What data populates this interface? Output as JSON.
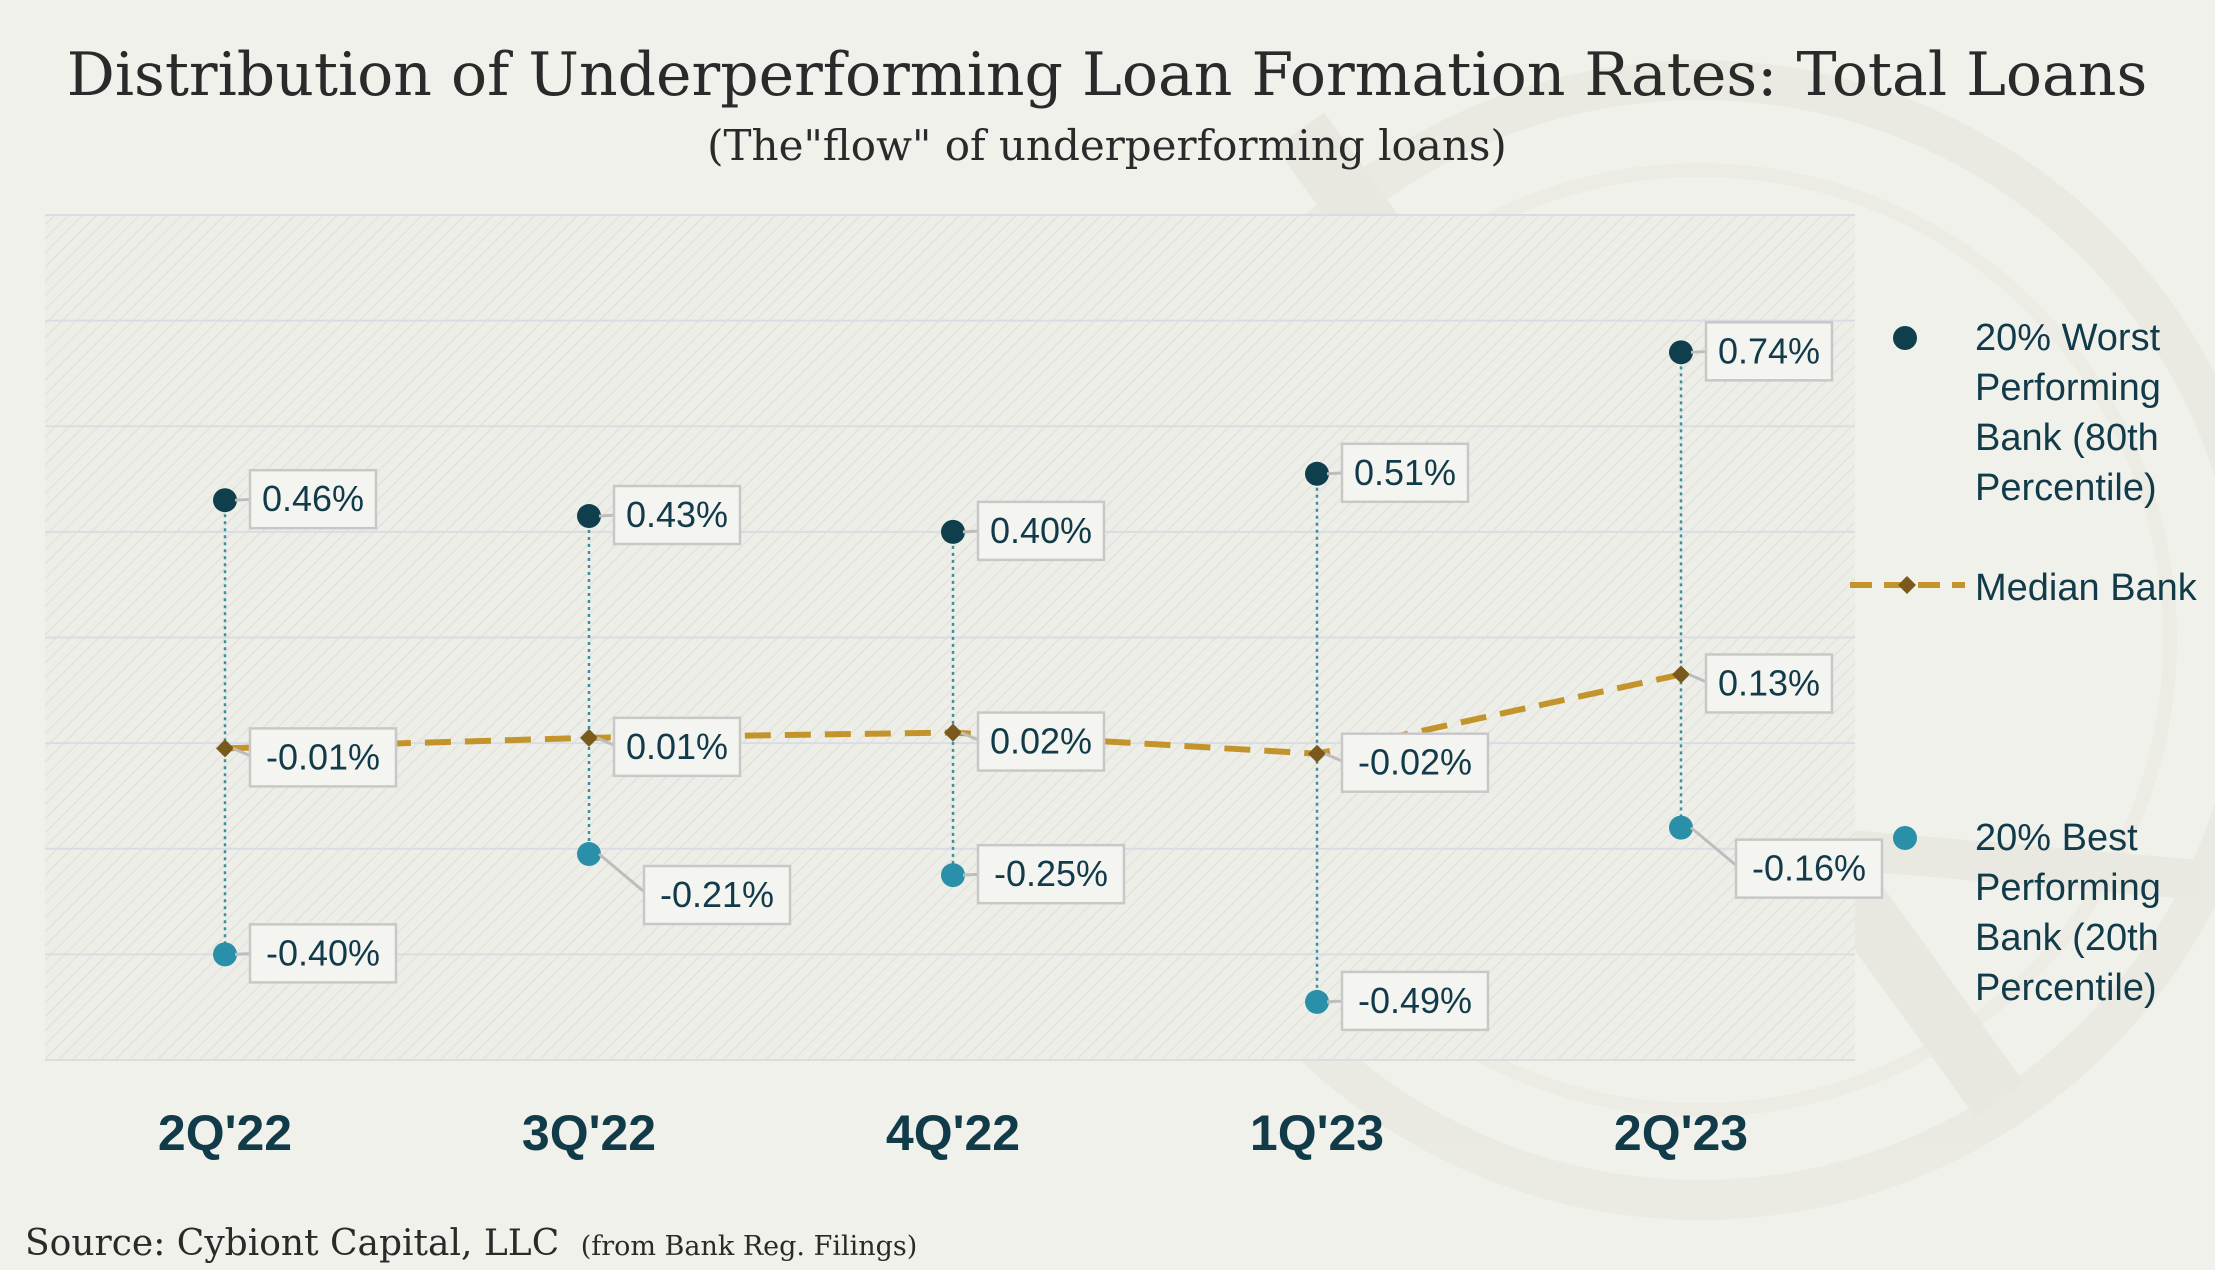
{
  "title": "Distribution of Underperforming Loan Formation Rates: Total Loans",
  "subtitle": "(The\"flow\" of underperforming loans)",
  "source": {
    "main": "Source: Cybiont Capital, LLC",
    "note": "(from Bank Reg. Filings)"
  },
  "colors": {
    "worst": "#0f3f4d",
    "median": "#c4942c",
    "median_marker": "#7a5a1c",
    "best": "#2a8fa8",
    "connector": "#3a8fa0",
    "gridline": "#d9dde3",
    "background": "#f1f1ec",
    "label_border": "#c8c8c8",
    "label_fill": "#f4f4f1"
  },
  "chart_data": {
    "type": "line",
    "categories": [
      "2Q'22",
      "3Q'22",
      "4Q'22",
      "1Q'23",
      "2Q'23"
    ],
    "series": [
      {
        "name": "20% Worst Performing Bank (80th Percentile)",
        "values": [
          0.46,
          0.43,
          0.4,
          0.51,
          0.74
        ],
        "labels": [
          "0.46%",
          "0.43%",
          "0.40%",
          "0.51%",
          "0.74%"
        ],
        "style": "markers"
      },
      {
        "name": "Median Bank",
        "values": [
          -0.01,
          0.01,
          0.02,
          -0.02,
          0.13
        ],
        "labels": [
          "-0.01%",
          "0.01%",
          "0.02%",
          "-0.02%",
          "0.13%"
        ],
        "style": "dashed-line-diamond"
      },
      {
        "name": "20% Best Performing Bank (20th Percentile)",
        "values": [
          -0.4,
          -0.21,
          -0.25,
          -0.49,
          -0.16
        ],
        "labels": [
          "-0.40%",
          "-0.21%",
          "-0.25%",
          "-0.49%",
          "-0.16%"
        ],
        "style": "markers"
      }
    ],
    "ylim": [
      -0.6,
      1.0
    ],
    "ytick_step": 0.2,
    "y_tick_labels_visible": false,
    "grid": true,
    "legend_position": "right",
    "legend": [
      {
        "lines": [
          "20% Worst",
          "Performing",
          "Bank (80th",
          "Percentile)"
        ],
        "marker": "circle",
        "series": 0
      },
      {
        "lines": [
          "Median Bank"
        ],
        "marker": "dashed-diamond",
        "series": 1
      },
      {
        "lines": [
          "20% Best",
          "Performing",
          "Bank (20th",
          "Percentile)"
        ],
        "marker": "circle",
        "series": 2
      }
    ]
  }
}
